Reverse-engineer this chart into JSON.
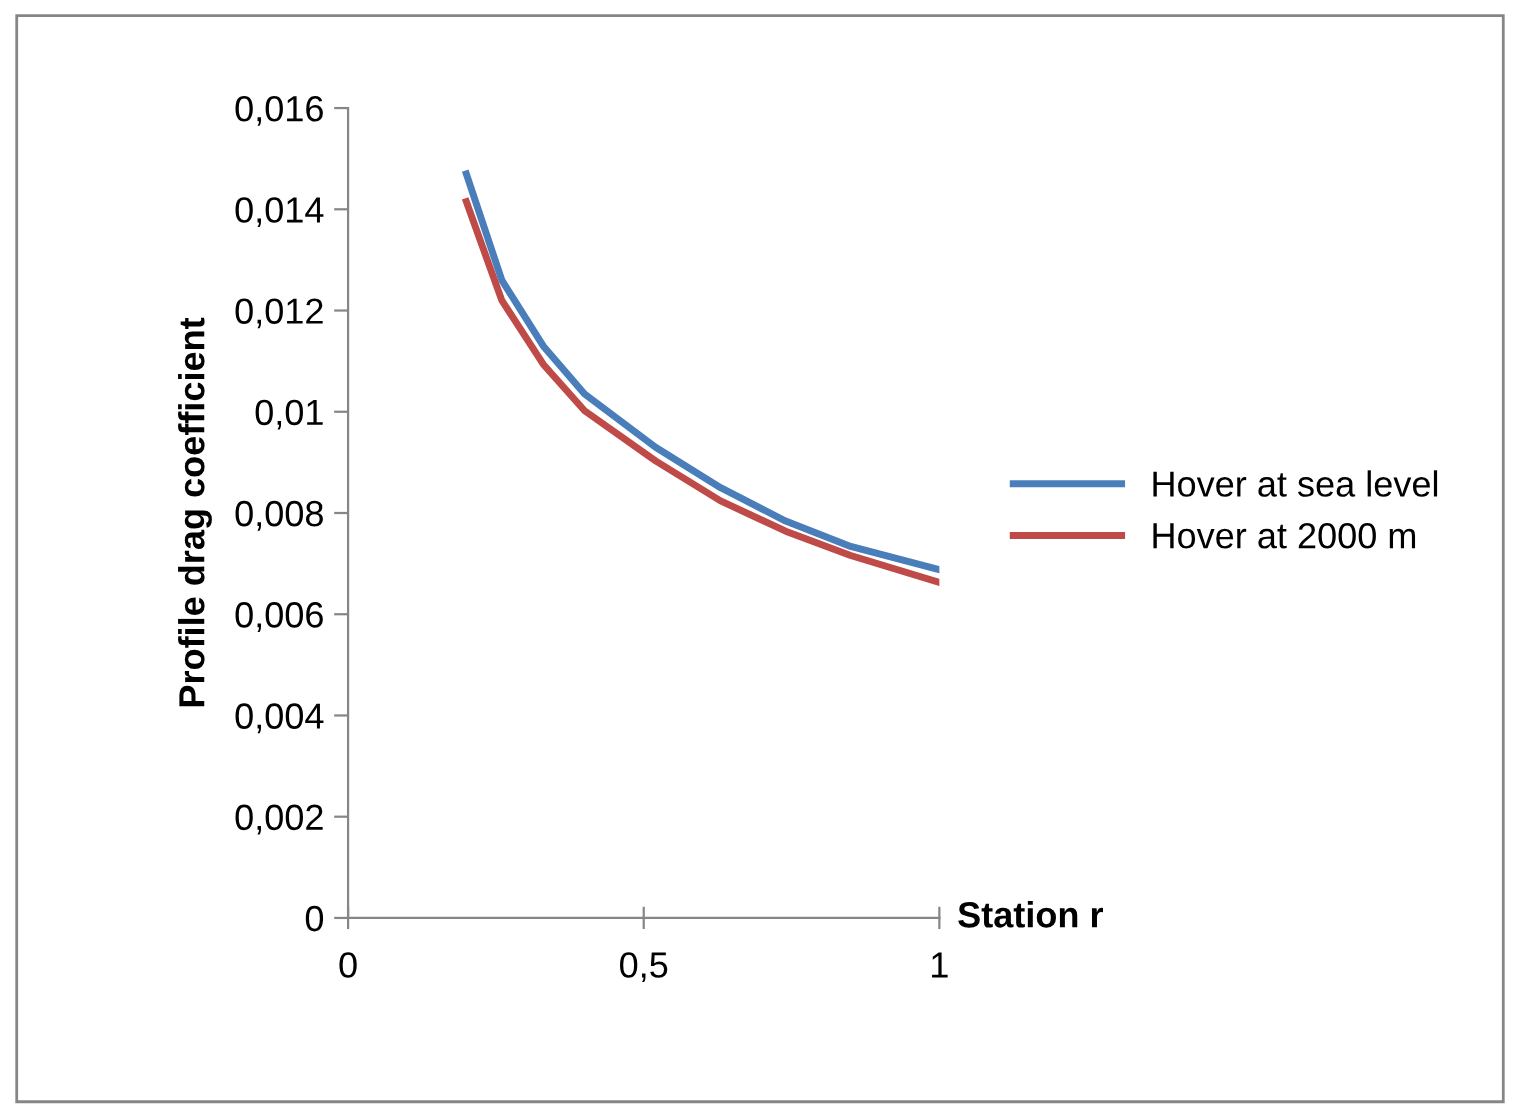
{
  "chart_data": {
    "type": "line",
    "xlabel": "Station r",
    "ylabel": "Profile drag coefficient",
    "xlim": [
      0,
      1
    ],
    "xticks": [
      0,
      {
        "value": 0.5,
        "label": "0,5"
      },
      1
    ],
    "ylim": [
      0,
      0.016
    ],
    "yticks": [
      0,
      {
        "value": 0.002,
        "label": "0,002"
      },
      {
        "value": 0.004,
        "label": "0,004"
      },
      {
        "value": 0.006,
        "label": "0,006"
      },
      {
        "value": 0.008,
        "label": "0,008"
      },
      {
        "value": 0.01,
        "label": "0,01"
      },
      {
        "value": 0.012,
        "label": "0,012"
      },
      {
        "value": 0.014,
        "label": "0,014"
      },
      {
        "value": 0.016,
        "label": "0,016"
      }
    ],
    "grid": false,
    "legend": "right",
    "marker": "none",
    "line_style": "solid",
    "x": [
      0.2,
      0.26,
      0.33,
      0.4,
      0.52,
      0.63,
      0.74,
      0.85,
      1
    ],
    "series": [
      {
        "name": "Hover at sea level",
        "color": "#4a7ebb",
        "values": [
          0.0147,
          0.0126,
          0.0113,
          0.01035,
          0.0093,
          0.0085,
          0.00784,
          0.00734,
          0.00688
        ]
      },
      {
        "name": "Hover at 2000 m",
        "color": "#be4b48",
        "values": [
          0.01415,
          0.0122,
          0.01094,
          0.01002,
          0.00903,
          0.00824,
          0.00764,
          0.00716,
          0.00663
        ]
      }
    ]
  }
}
